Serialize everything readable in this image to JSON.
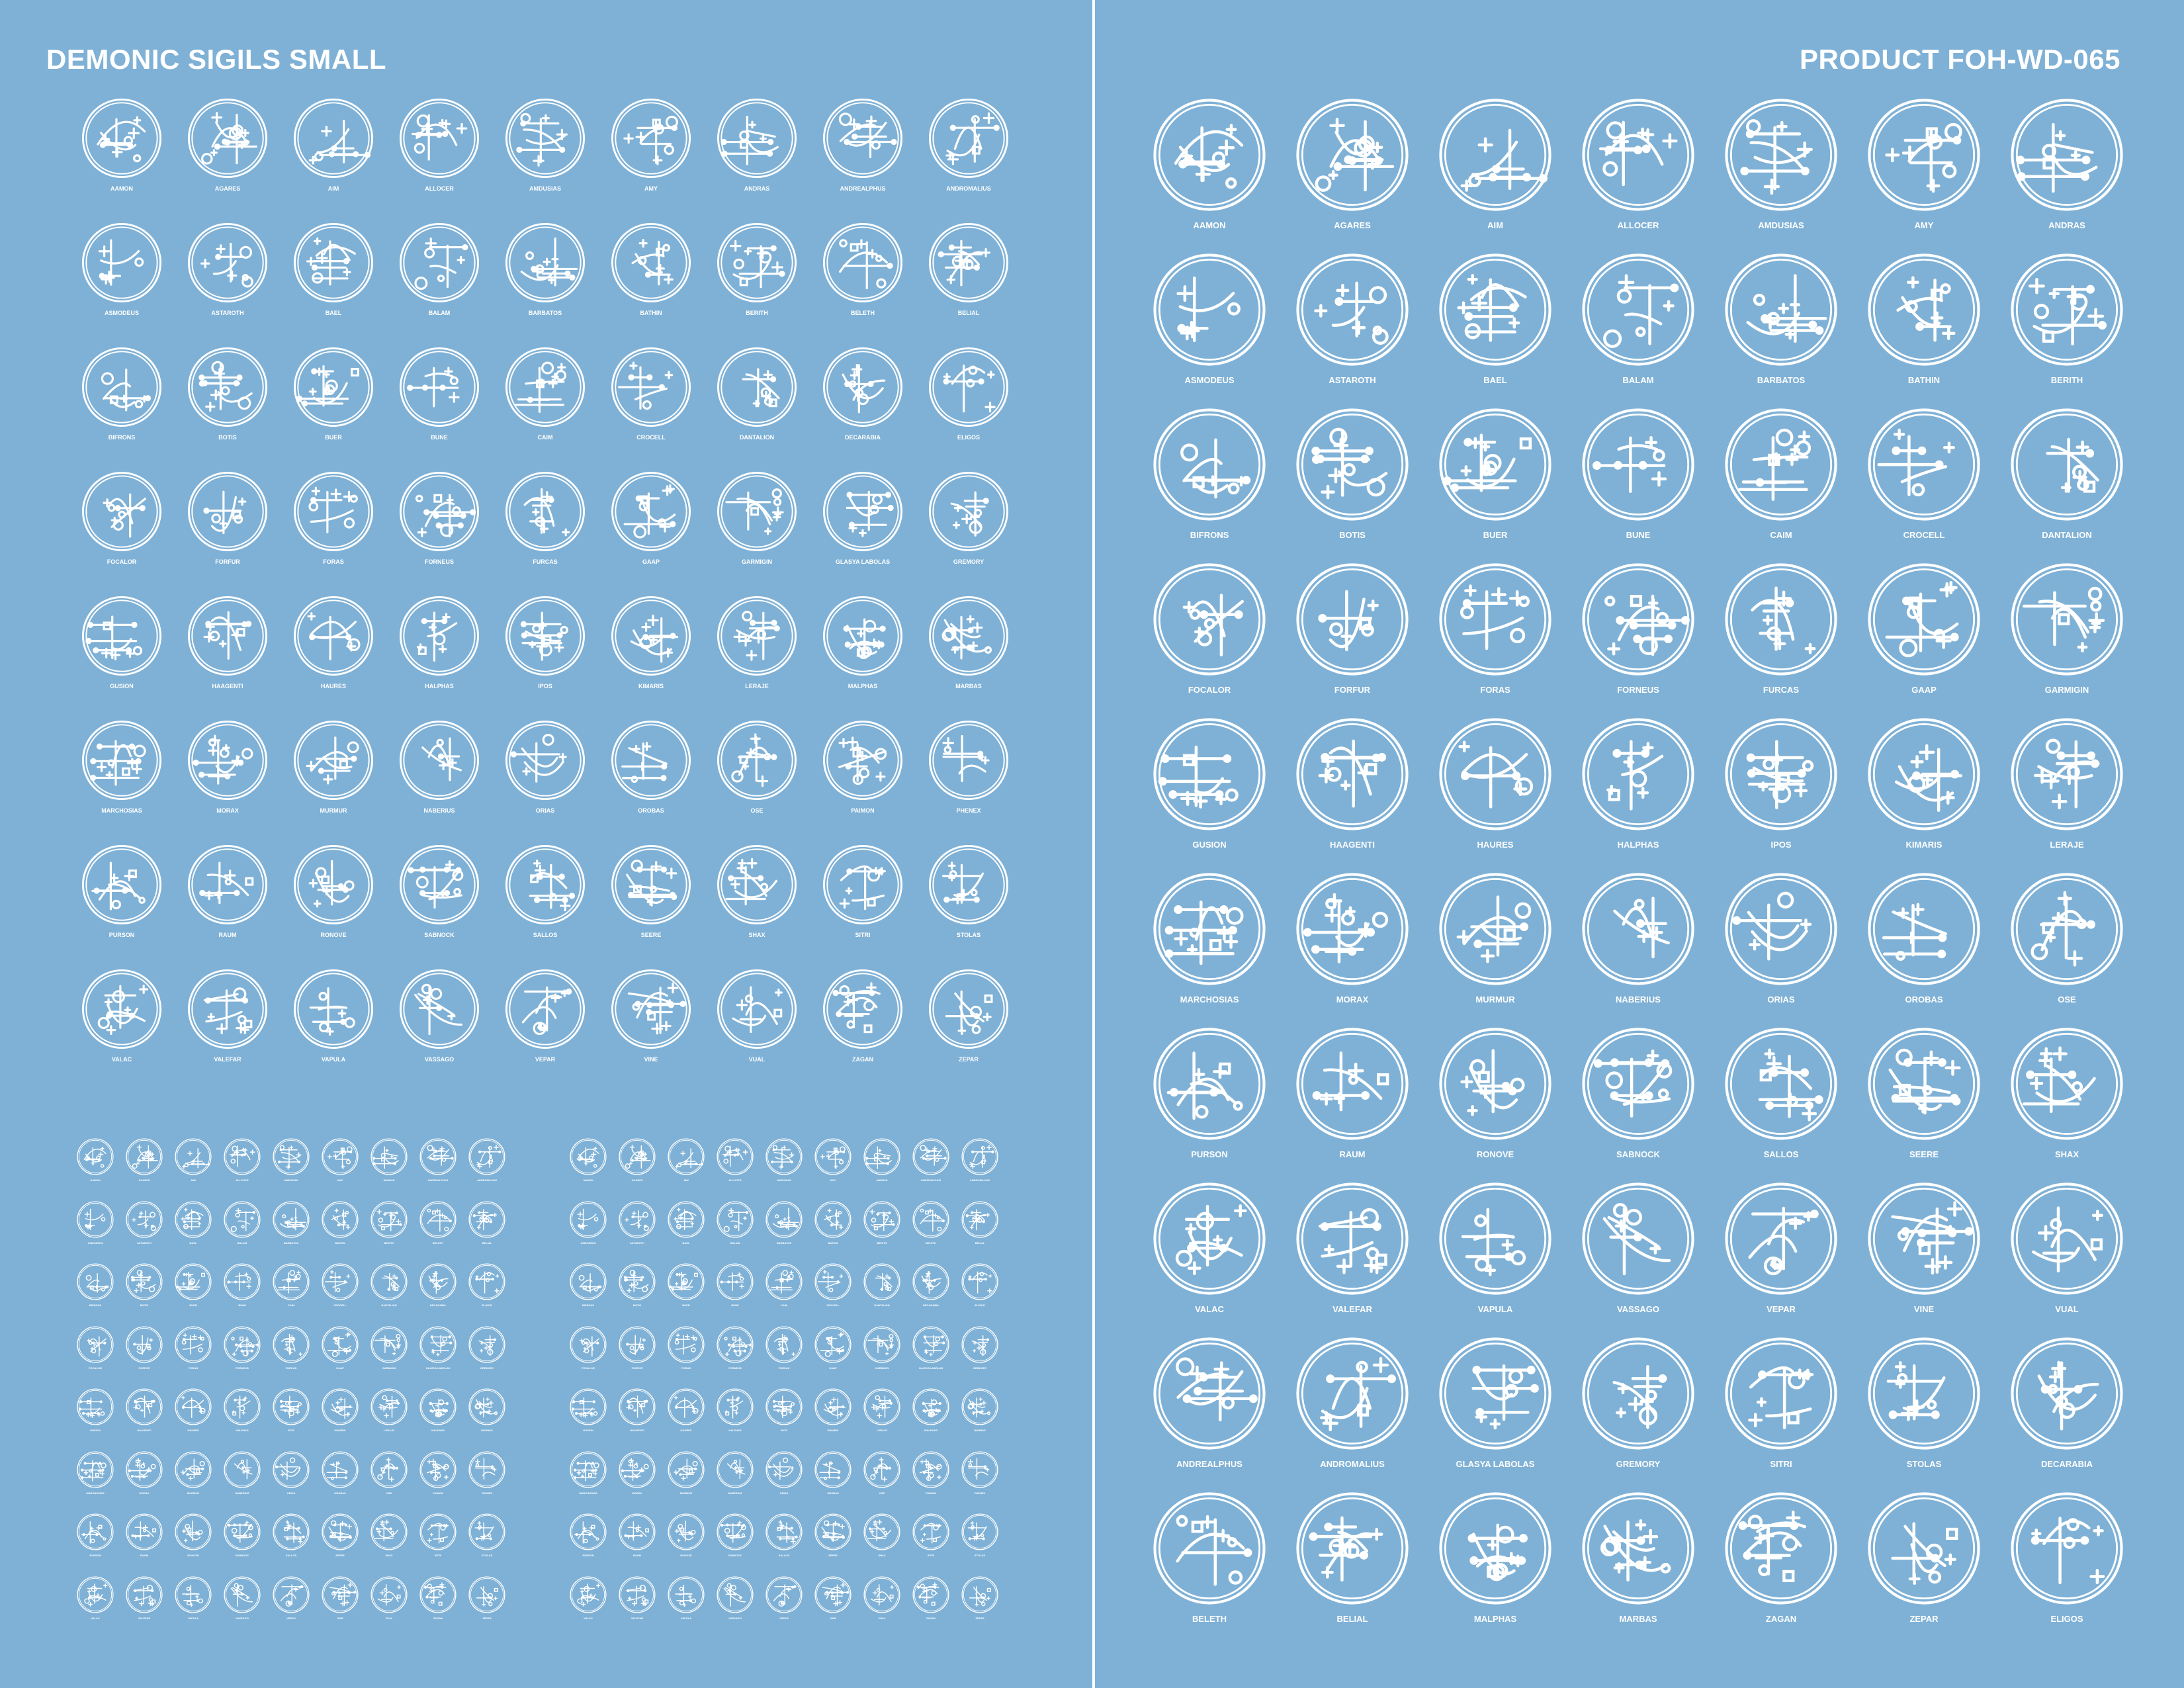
{
  "header": {
    "left_title": "DEMONIC SIGILS SMALL",
    "right_title": "PRODUCT FOH-WD-065"
  },
  "colors": {
    "background": "#7fb1d6",
    "foreground": "#ffffff"
  },
  "small_sheet": {
    "labels": [
      "AAMON",
      "AGARES",
      "AIM",
      "ALLOCER",
      "AMDUSIAS",
      "AMY",
      "ANDRAS",
      "ANDREALPHUS",
      "ANDROMALIUS",
      "ASMODEUS",
      "ASTAROTH",
      "BAEL",
      "BALAM",
      "BARBATOS",
      "BATHIN",
      "BERITH",
      "BELETH",
      "BELIAL",
      "BIFRONS",
      "BOTIS",
      "BUER",
      "BUNE",
      "CAIM",
      "CROCELL",
      "DANTALION",
      "DECARABIA",
      "ELIGOS",
      "FOCALOR",
      "FORFUR",
      "FORAS",
      "FORNEUS",
      "FURCAS",
      "GAAP",
      "GARMIGIN",
      "GLASYA LABOLAS",
      "GREMORY",
      "GUSION",
      "HAAGENTI",
      "HAURES",
      "HALPHAS",
      "IPOS",
      "KIMARIS",
      "LERAJE",
      "MALPHAS",
      "MARBAS",
      "MARCHOSIAS",
      "MORAX",
      "MURMUR",
      "NABERIUS",
      "ORIAS",
      "OROBAS",
      "OSE",
      "PAIMON",
      "PHENEX",
      "PURSON",
      "RAUM",
      "RONOVE",
      "SABNOCK",
      "SALLOS",
      "SEERE",
      "SHAX",
      "SITRI",
      "STOLAS",
      "VALAC",
      "VALEFAR",
      "VAPULA",
      "VASSAGO",
      "VEPAR",
      "VINE",
      "VUAL",
      "ZAGAN",
      "ZEPAR"
    ]
  },
  "product_sheet": {
    "labels": [
      "AAMON",
      "AGARES",
      "AIM",
      "ALLOCER",
      "AMDUSIAS",
      "AMY",
      "ANDRAS",
      "ASMODEUS",
      "ASTAROTH",
      "BAEL",
      "BALAM",
      "BARBATOS",
      "BATHIN",
      "BERITH",
      "BIFRONS",
      "BOTIS",
      "BUER",
      "BUNE",
      "CAIM",
      "CROCELL",
      "DANTALION",
      "FOCALOR",
      "FORFUR",
      "FORAS",
      "FORNEUS",
      "FURCAS",
      "GAAP",
      "GARMIGIN",
      "GUSION",
      "HAAGENTI",
      "HAURES",
      "HALPHAS",
      "IPOS",
      "KIMARIS",
      "LERAJE",
      "MARCHOSIAS",
      "MORAX",
      "MURMUR",
      "NABERIUS",
      "ORIAS",
      "OROBAS",
      "OSE",
      "PURSON",
      "RAUM",
      "RONOVE",
      "SABNOCK",
      "SALLOS",
      "SEERE",
      "SHAX",
      "VALAC",
      "VALEFAR",
      "VAPULA",
      "VASSAGO",
      "VEPAR",
      "VINE",
      "VUAL",
      "ANDREALPHUS",
      "ANDROMALIUS",
      "GLASYA LABOLAS",
      "GREMORY",
      "SITRI",
      "STOLAS",
      "DECARABIA",
      "BELETH",
      "BELIAL",
      "MALPHAS",
      "MARBAS",
      "ZAGAN",
      "ZEPAR",
      "ELIGOS"
    ]
  }
}
